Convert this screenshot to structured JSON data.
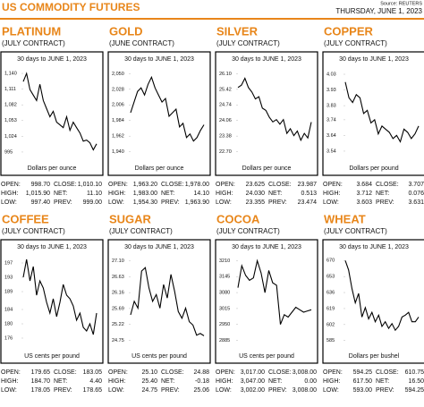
{
  "header": {
    "title": "US COMMODITY FUTURES",
    "source": "Source: REUTERS",
    "date": "THURSDAY, JUNE 1, 2023"
  },
  "chart_data": [
    {
      "type": "line",
      "title": "PLATINUM",
      "subtitle": "(JULY CONTRACT)",
      "chart_title": "30 days to JUNE 1, 2023",
      "y_label": "Dollars per ounce",
      "color": "#000000",
      "values": [
        1125,
        1140,
        1110,
        1100,
        1090,
        1120,
        1090,
        1075,
        1060,
        1070,
        1050,
        1045,
        1040,
        1060,
        1035,
        1050,
        1040,
        1030,
        1015,
        1017,
        1012,
        999,
        1010
      ],
      "ylim": [
        985,
        1150
      ],
      "yticks": [
        995,
        {
          "value": 1024,
          "label": "1,024"
        },
        {
          "value": 1053,
          "label": "1,053"
        },
        {
          "value": 1082,
          "label": "1,082"
        },
        {
          "value": 1111,
          "label": "1,111"
        },
        {
          "value": 1140,
          "label": "1,140"
        }
      ],
      "stats": [
        [
          "OPEN:",
          "998.70",
          "CLOSE:",
          "1,010.10"
        ],
        [
          "HIGH:",
          "1,015.90",
          "NET:",
          "11.10"
        ],
        [
          "LOW:",
          "997.40",
          "PREV:",
          "999.00"
        ]
      ]
    },
    {
      "type": "line",
      "title": "GOLD",
      "subtitle": "(JUNE CONTRACT)",
      "chart_title": "30 days to JUNE 1, 2023",
      "y_label": "Dollars per ounce",
      "color": "#000000",
      "values": [
        1995,
        2010,
        2025,
        2030,
        2020,
        2035,
        2045,
        2030,
        2020,
        2010,
        2015,
        1990,
        1995,
        2000,
        1975,
        1980,
        1960,
        1965,
        1955,
        1960,
        1970,
        1978
      ],
      "ylim": [
        1932,
        2058
      ],
      "yticks": [
        {
          "value": 1940,
          "label": "1,940"
        },
        {
          "value": 1962,
          "label": "1,962"
        },
        {
          "value": 1984,
          "label": "1,984"
        },
        {
          "value": 2006,
          "label": "2,006"
        },
        {
          "value": 2028,
          "label": "2,028"
        },
        {
          "value": 2050,
          "label": "2,050"
        }
      ],
      "stats": [
        [
          "OPEN:",
          "1,963.20",
          "CLOSE:",
          "1,978.00"
        ],
        [
          "HIGH:",
          "1,983.00",
          "NET:",
          "14.10"
        ],
        [
          "LOW:",
          "1,954.30",
          "PREV:",
          "1,963.90"
        ]
      ]
    },
    {
      "type": "line",
      "title": "SILVER",
      "subtitle": "(JULY CONTRACT)",
      "chart_title": "30 days to JUNE 1, 2023",
      "y_label": "Dollars per ounce",
      "color": "#000000",
      "values": [
        25.5,
        25.6,
        25.9,
        25.5,
        25.3,
        25.0,
        25.1,
        24.6,
        24.5,
        24.2,
        24.0,
        24.1,
        23.9,
        24.1,
        23.5,
        23.7,
        23.4,
        23.6,
        23.2,
        23.5,
        23.3,
        23.99
      ],
      "ylim": [
        22.45,
        26.35
      ],
      "yticks": [
        {
          "value": 22.7,
          "label": "22.70"
        },
        23.38,
        24.06,
        24.74,
        25.42,
        {
          "value": 26.1,
          "label": "26.10"
        }
      ],
      "stats": [
        [
          "OPEN:",
          "23.625",
          "CLOSE:",
          "23.987"
        ],
        [
          "HIGH:",
          "24.030",
          "NET:",
          "0.513"
        ],
        [
          "LOW:",
          "23.355",
          "PREV:",
          "23.474"
        ]
      ]
    },
    {
      "type": "line",
      "title": "COPPER",
      "subtitle": "(JULY CONTRACT)",
      "chart_title": "30 days to JUNE 1, 2023",
      "y_label": "Dollars per pound",
      "color": "#000000",
      "values": [
        3.98,
        3.88,
        3.85,
        3.9,
        3.88,
        3.78,
        3.8,
        3.72,
        3.74,
        3.65,
        3.7,
        3.68,
        3.66,
        3.62,
        3.64,
        3.6,
        3.68,
        3.66,
        3.62,
        3.65,
        3.7
      ],
      "ylim": [
        3.5,
        4.07
      ],
      "yticks": [
        3.54,
        3.64,
        3.74,
        3.83,
        3.93,
        4.03
      ],
      "stats": [
        [
          "OPEN:",
          "3.684",
          "CLOSE:",
          "3.707"
        ],
        [
          "HIGH:",
          "3.712",
          "NET:",
          "0.076"
        ],
        [
          "LOW:",
          "3.603",
          "PREV:",
          "3.631"
        ]
      ]
    },
    {
      "type": "line",
      "title": "COFFEE",
      "subtitle": "(JULY CONTRACT)",
      "chart_title": "30 days to JUNE 1, 2023",
      "y_label": "US cents per pound",
      "color": "#000000",
      "values": [
        193,
        198,
        192,
        196,
        188,
        192,
        190,
        186,
        183,
        187,
        182,
        186,
        191,
        188,
        187,
        185,
        181,
        183,
        179,
        178,
        180,
        177,
        183
      ],
      "ylim": [
        174,
        199
      ],
      "yticks": [
        176,
        180,
        184,
        189,
        193,
        197
      ],
      "stats": [
        [
          "OPEN:",
          "179.65",
          "CLOSE:",
          "183.05"
        ],
        [
          "HIGH:",
          "184.70",
          "NET:",
          "4.40"
        ],
        [
          "LOW:",
          "178.05",
          "PREV:",
          "178.65"
        ]
      ]
    },
    {
      "type": "line",
      "title": "SUGAR",
      "subtitle": "(JULY CONTRACT)",
      "chart_title": "30 days to JUNE 1, 2023",
      "y_label": "US cents per pound",
      "color": "#000000",
      "values": [
        25.5,
        25.9,
        25.7,
        26.8,
        26.9,
        26.3,
        25.9,
        26.1,
        25.7,
        26.4,
        26.0,
        26.7,
        26.2,
        25.6,
        25.4,
        25.7,
        25.3,
        25.2,
        24.9,
        24.95,
        24.88
      ],
      "ylim": [
        24.6,
        27.25
      ],
      "yticks": [
        24.75,
        25.22,
        25.69,
        26.16,
        26.63,
        {
          "value": 27.1,
          "label": "27.10"
        }
      ],
      "stats": [
        [
          "OPEN:",
          "25.10",
          "CLOSE:",
          "24.88"
        ],
        [
          "HIGH:",
          "25.40",
          "NET:",
          "-0.18"
        ],
        [
          "LOW:",
          "24.75",
          "PREV:",
          "25.06"
        ]
      ]
    },
    {
      "type": "line",
      "title": "COCOA",
      "subtitle": "(JULY CONTRACT)",
      "chart_title": "30 days to JUNE 1, 2023",
      "y_label": "US cents per pound",
      "color": "#000000",
      "values": [
        3100,
        3190,
        3150,
        3130,
        3140,
        3210,
        3160,
        3080,
        3170,
        3120,
        3110,
        2950,
        2990,
        2980,
        3000,
        3020,
        3010,
        3000,
        3005,
        3010
      ],
      "ylim": [
        2865,
        3230
      ],
      "yticks": [
        2885,
        2950,
        3015,
        3080,
        3145,
        3210
      ],
      "stats": [
        [
          "OPEN:",
          "3,017.00",
          "CLOSE:",
          "3,008.00"
        ],
        [
          "HIGH:",
          "3,047.00",
          "NET:",
          "0.00"
        ],
        [
          "LOW:",
          "3,002.00",
          "PREV:",
          "3,008.00"
        ]
      ]
    },
    {
      "type": "line",
      "title": "WHEAT",
      "subtitle": "(JULY CONTRACT)",
      "chart_title": "30 days to JUNE 1, 2023",
      "y_label": "Dollars per bushel",
      "color": "#000000",
      "values": [
        670,
        660,
        640,
        625,
        635,
        610,
        620,
        608,
        615,
        605,
        612,
        600,
        605,
        598,
        603,
        596,
        600,
        610,
        612,
        615,
        605,
        605,
        610
      ],
      "ylim": [
        580,
        675
      ],
      "yticks": [
        585,
        602,
        619,
        636,
        653,
        670
      ],
      "stats": [
        [
          "OPEN:",
          "594.25",
          "CLOSE:",
          "610.75"
        ],
        [
          "HIGH:",
          "617.50",
          "NET:",
          "16.50"
        ],
        [
          "LOW:",
          "593.00",
          "PREV:",
          "594.25"
        ]
      ]
    }
  ]
}
